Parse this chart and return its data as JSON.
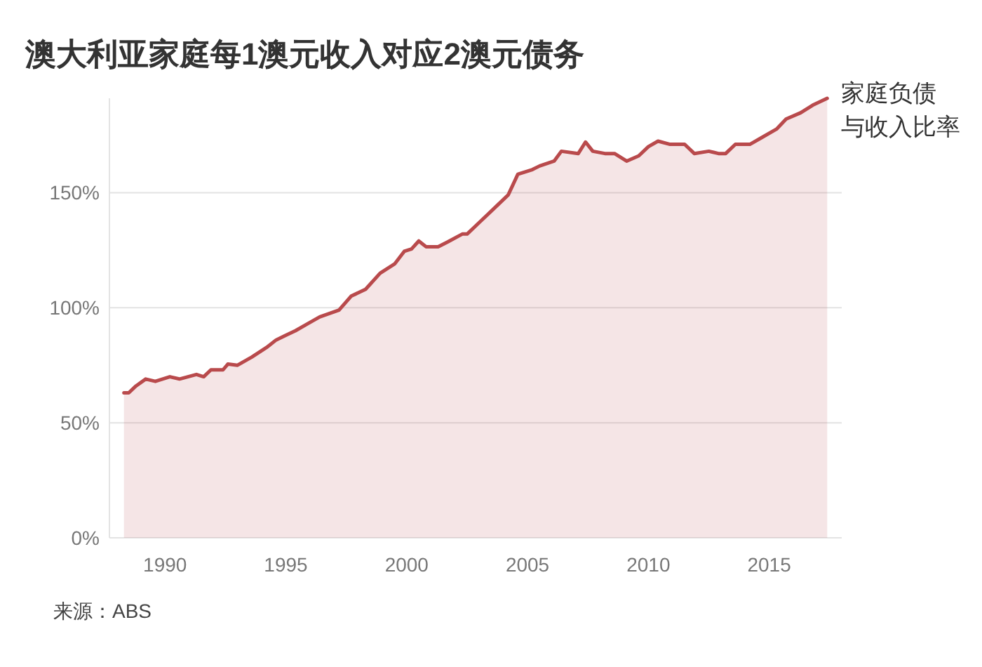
{
  "chart_data": {
    "type": "area",
    "title": "澳大利亚家庭每1澳元收入对应2澳元债务",
    "x": [
      1988.3,
      1988.5,
      1988.8,
      1989.2,
      1989.6,
      1990.2,
      1990.6,
      1991.3,
      1991.6,
      1991.9,
      1992.4,
      1992.6,
      1993.0,
      1993.6,
      1994.2,
      1994.6,
      1995.0,
      1995.4,
      1995.9,
      1996.4,
      1997.2,
      1997.7,
      1998.3,
      1998.9,
      1999.5,
      1999.9,
      2000.2,
      2000.5,
      2000.8,
      2001.3,
      2001.7,
      2002.3,
      2002.5,
      2003.0,
      2003.6,
      2004.2,
      2004.6,
      2005.2,
      2005.5,
      2006.1,
      2006.4,
      2007.1,
      2007.4,
      2007.7,
      2008.2,
      2008.6,
      2009.1,
      2009.6,
      2010.0,
      2010.4,
      2010.9,
      2011.5,
      2011.9,
      2012.5,
      2012.9,
      2013.2,
      2013.6,
      2014.2,
      2014.7,
      2015.3,
      2015.7,
      2016.3,
      2016.8,
      2017.4
    ],
    "series": [
      {
        "name": "家庭负债与收入比率",
        "color": "#b94a4c",
        "values": [
          63,
          63,
          66,
          69,
          68,
          70,
          69,
          71,
          70,
          73,
          73,
          75.5,
          75,
          78.6,
          82.7,
          86,
          88,
          90,
          93,
          96,
          99,
          105,
          108,
          115,
          119,
          124.5,
          125.5,
          129,
          126.5,
          126.5,
          128.6,
          132,
          132,
          137,
          143,
          149,
          158,
          160,
          161.6,
          163.7,
          168,
          167,
          172,
          168,
          167,
          167,
          163.7,
          166,
          170,
          172.4,
          171,
          171,
          167,
          168,
          167,
          167,
          171,
          171,
          174,
          177.6,
          182,
          184.7,
          188,
          191
        ]
      }
    ],
    "xlim": [
      1987.7,
      2018.0
    ],
    "ylim": [
      0,
      191
    ],
    "xticks": [
      1990,
      1995,
      2000,
      2005,
      2010,
      2015
    ],
    "yticks": [
      {
        "value": 0,
        "label": "0%"
      },
      {
        "value": 50,
        "label": "50%"
      },
      {
        "value": 100,
        "label": "100%"
      },
      {
        "value": 150,
        "label": "150%"
      }
    ],
    "grid": "y",
    "annotations": [
      "来源：ABS"
    ]
  }
}
